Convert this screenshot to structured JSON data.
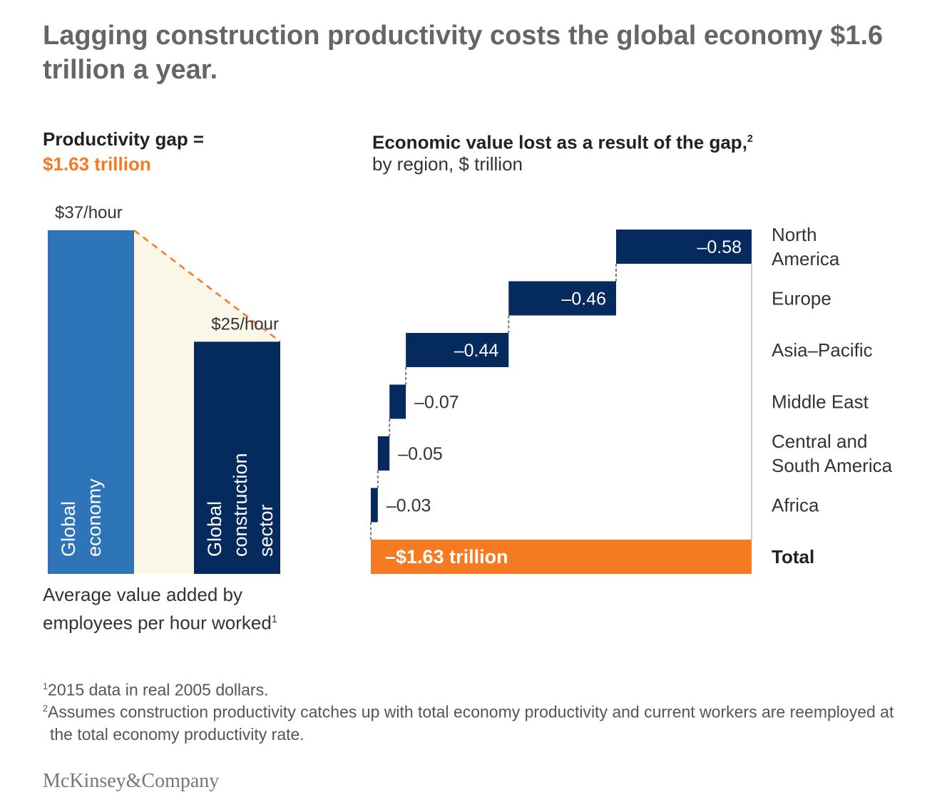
{
  "title": "Lagging construction productivity costs the global economy $1.6 trillion a year.",
  "left_panel": {
    "heading": "Productivity gap =",
    "gap_value": "$1.63 trillion",
    "caption": "Average value added by employees per hour worked",
    "caption_sup": "1"
  },
  "right_panel": {
    "heading": "Economic value lost as a result of the gap,",
    "heading_sup": "2",
    "subheading": "by region, $ trillion"
  },
  "footnotes": [
    {
      "sup": "1",
      "text": "2015 data in real 2005 dollars."
    },
    {
      "sup": "2",
      "text": "Assumes construction productivity catches up with total economy productivity and current workers are reemployed at the total economy productivity rate."
    }
  ],
  "logo": "McKinsey&Company",
  "colors": {
    "light_blue": "#2e74b9",
    "navy": "#042a5e",
    "orange": "#f67a21",
    "gap_fill": "#faf6e8"
  },
  "chart_data": [
    {
      "type": "bar",
      "categories": [
        "Global economy",
        "Global construction sector"
      ],
      "values": [
        37,
        25
      ],
      "data_labels": [
        "$37/hour",
        "$25/hour"
      ],
      "unit": "$/hour"
    },
    {
      "type": "waterfall",
      "categories": [
        "North America",
        "Europe",
        "Asia–Pacific",
        "Middle East",
        "Central and South America",
        "Africa"
      ],
      "category_lines": [
        [
          "North",
          "America"
        ],
        [
          "Europe"
        ],
        [
          "Asia–Pacific"
        ],
        [
          "Middle East"
        ],
        [
          "Central and",
          "South America"
        ],
        [
          "Africa"
        ]
      ],
      "values": [
        -0.58,
        -0.46,
        -0.44,
        -0.07,
        -0.05,
        -0.03
      ],
      "data_labels": [
        "–0.58",
        "–0.46",
        "–0.44",
        "–0.07",
        "–0.05",
        "–0.03"
      ],
      "total": {
        "label": "Total",
        "value": -1.63,
        "data_label": "–$1.63 trillion"
      },
      "unit": "$ trillion"
    }
  ]
}
